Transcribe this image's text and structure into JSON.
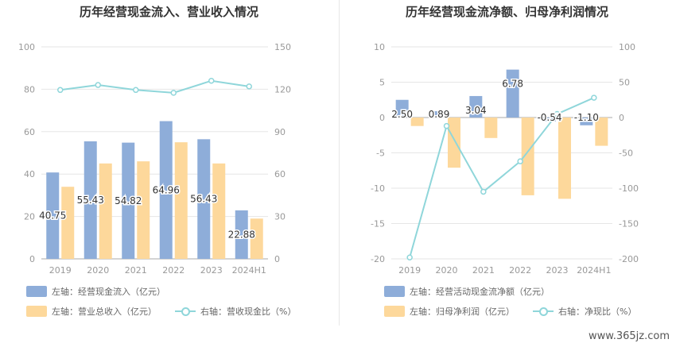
{
  "watermark": "www.365jz.com",
  "colors": {
    "blue": "#8eadd9",
    "orange": "#fdd89b",
    "line": "#8fd6da",
    "axis": "#999999",
    "grid": "#e6e6e6",
    "label": "#333333"
  },
  "chart_data": [
    {
      "type": "bar",
      "title": "历年经营现金流入、营业收入情况",
      "categories": [
        "2019",
        "2020",
        "2021",
        "2022",
        "2023",
        "2024H1"
      ],
      "left_axis": {
        "ticks": [
          "0",
          "20",
          "40",
          "60",
          "80",
          "100"
        ],
        "min": 0,
        "max": 100
      },
      "right_axis": {
        "ticks": [
          "0",
          "30",
          "60",
          "90",
          "120",
          "150"
        ],
        "min": 0,
        "max": 150
      },
      "series": [
        {
          "name": "左轴：经营现金流入（亿元）",
          "axis": "left",
          "kind": "bar",
          "values": [
            40.75,
            55.43,
            54.82,
            64.96,
            56.43,
            22.88
          ],
          "labels": [
            "40.75",
            "55.43",
            "54.82",
            "64.96",
            "56.43",
            "22.88"
          ]
        },
        {
          "name": "左轴：营业总收入（亿元）",
          "axis": "left",
          "kind": "bar",
          "values": [
            34.0,
            45.0,
            46.0,
            55.0,
            45.0,
            19.0
          ]
        },
        {
          "name": "右轴：营收现金比（%）",
          "axis": "right",
          "kind": "line",
          "values": [
            119.5,
            123.0,
            119.5,
            117.5,
            126.0,
            122.0
          ]
        }
      ]
    },
    {
      "type": "bar",
      "title": "历年经营现金流净额、归母净利润情况",
      "categories": [
        "2019",
        "2020",
        "2021",
        "2022",
        "2023",
        "2024H1"
      ],
      "left_axis": {
        "ticks": [
          "-20",
          "-15",
          "-10",
          "-5",
          "0",
          "5",
          "10"
        ],
        "min": -20,
        "max": 10
      },
      "right_axis": {
        "ticks": [
          "-200",
          "-150",
          "-100",
          "-50",
          "0",
          "50",
          "100"
        ],
        "min": -200,
        "max": 100
      },
      "series": [
        {
          "name": "左轴：经营活动现金流净额（亿元）",
          "axis": "left",
          "kind": "bar",
          "values": [
            2.5,
            0.89,
            3.04,
            6.78,
            -0.54,
            -1.1
          ],
          "labels": [
            "2.50",
            "0.89",
            "3.04",
            "6.78",
            "-0.54",
            "-1.10"
          ]
        },
        {
          "name": "左轴：归母净利润（亿元）",
          "axis": "left",
          "kind": "bar",
          "values": [
            -1.2,
            -7.1,
            -2.9,
            -11.0,
            -11.5,
            -4.0
          ]
        },
        {
          "name": "右轴：净现比（%）",
          "axis": "right",
          "kind": "line",
          "values": [
            -198,
            -12,
            -105,
            -62,
            5,
            28
          ]
        }
      ]
    }
  ]
}
